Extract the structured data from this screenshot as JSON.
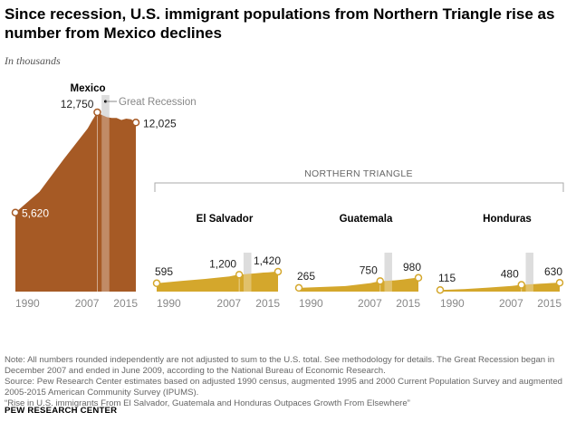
{
  "title": "Since recession, U.S. immigrant populations from Northern Triangle rise as number from Mexico declines",
  "subtitle": "In thousands",
  "notes": [
    "Note: All numbers rounded independently are not adjusted to sum to the U.S. total. See methodology for details. The Great Recession began in December 2007 and ended in June 2009, according to the National Bureau of Economic Research.",
    "Source: Pew Research Center estimates based on adjusted 1990 census, augmented 1995 and 2000 Current Population Survey and augmented 2005-2015 American Community Survey (IPUMS).",
    "“Rise in U.S. immigrants From El Salvador, Guatemala and Honduras Outpaces Growth From Elsewhere”"
  ],
  "source_org": "PEW RESEARCH CENTER",
  "colors": {
    "mexico": "#a65a25",
    "triangle": "#d4a72c",
    "recession": "#cfcfcf"
  },
  "chart_data": {
    "type": "area",
    "recession_label": "Great Recession",
    "recession_period": [
      2007.9,
      2009.5
    ],
    "group_label": "NORTHERN TRIANGLE",
    "x": [
      1990,
      1995,
      2000,
      2005,
      2006,
      2007,
      2008,
      2009,
      2010,
      2011,
      2012,
      2013,
      2014,
      2015
    ],
    "tick_labels": [
      "1990",
      "2007",
      "2015"
    ],
    "series": [
      {
        "name": "Mexico",
        "values": [
          5620,
          7100,
          9400,
          11600,
          12200,
          12750,
          12550,
          12400,
          12350,
          12350,
          12200,
          12300,
          12250,
          12025
        ],
        "labels": [
          "5,620",
          "12,750",
          "12,025"
        ]
      },
      {
        "name": "El Salvador",
        "values": [
          595,
          760,
          900,
          1080,
          1150,
          1200,
          1230,
          1260,
          1290,
          1320,
          1350,
          1370,
          1400,
          1420
        ],
        "labels": [
          "595",
          "1,200",
          "1,420"
        ]
      },
      {
        "name": "Guatemala",
        "values": [
          265,
          330,
          400,
          600,
          680,
          750,
          760,
          780,
          800,
          830,
          870,
          920,
          960,
          980
        ],
        "labels": [
          "265",
          "750",
          "980"
        ]
      },
      {
        "name": "Honduras",
        "values": [
          115,
          180,
          280,
          400,
          440,
          480,
          500,
          520,
          540,
          560,
          580,
          600,
          620,
          630
        ],
        "labels": [
          "115",
          "480",
          "630"
        ]
      }
    ]
  }
}
